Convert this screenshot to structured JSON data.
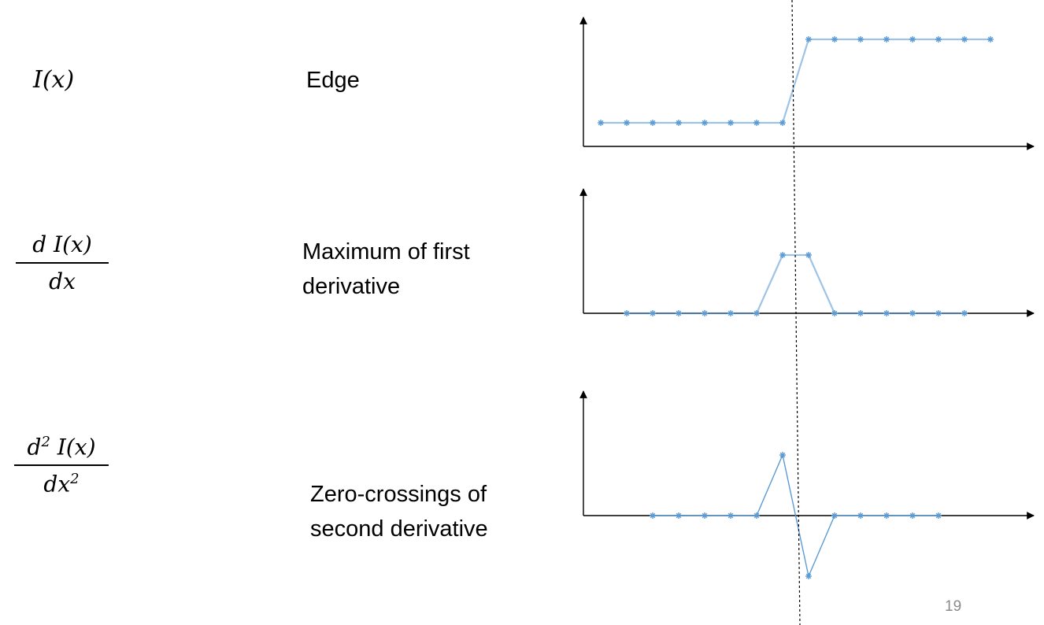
{
  "rows": [
    {
      "expression": {
        "main": "I(x)"
      },
      "label": [
        "Edge"
      ]
    },
    {
      "expression": {
        "numerator": "d I(x)",
        "denominator": "dx"
      },
      "label": [
        "Maximum of first",
        "derivative"
      ]
    },
    {
      "expression": {
        "numerator": "d",
        "numerator_sup": "2",
        "numerator_rest": " I(x)",
        "denominator": "dx",
        "denominator_sup": "2"
      },
      "label": [
        "Zero-crossings of",
        "second derivative"
      ]
    }
  ],
  "page_number": "19",
  "colors": {
    "series": "#5b9bd5",
    "axes": "#000000",
    "guide": "#000000"
  },
  "chart_data": [
    {
      "type": "line",
      "title": "Edge",
      "x": [
        1,
        2,
        3,
        4,
        5,
        6,
        7,
        8,
        9,
        10,
        11,
        12,
        13,
        14,
        15,
        16
      ],
      "series": [
        {
          "values": [
            0,
            0,
            0,
            0,
            0,
            0,
            0,
            0,
            1,
            1,
            1,
            1,
            1,
            1,
            1,
            1
          ]
        }
      ],
      "markers": "asterisk",
      "grid": false
    },
    {
      "type": "line",
      "title": "Maximum of first derivative",
      "x": [
        2,
        3,
        4,
        5,
        6,
        7,
        8,
        9,
        10,
        11,
        12,
        13,
        14,
        15
      ],
      "series": [
        {
          "values": [
            0,
            0,
            0,
            0,
            0,
            0,
            1,
            1,
            0,
            0,
            0,
            0,
            0,
            0
          ]
        }
      ],
      "markers": "asterisk",
      "grid": false
    },
    {
      "type": "line",
      "title": "Zero-crossings of second derivative",
      "x": [
        3,
        4,
        5,
        6,
        7,
        8,
        9,
        10,
        11,
        12,
        13,
        14
      ],
      "series": [
        {
          "values": [
            0,
            0,
            0,
            0,
            0,
            1,
            -1,
            0,
            0,
            0,
            0,
            0
          ]
        }
      ],
      "markers": "asterisk",
      "grid": false
    }
  ]
}
